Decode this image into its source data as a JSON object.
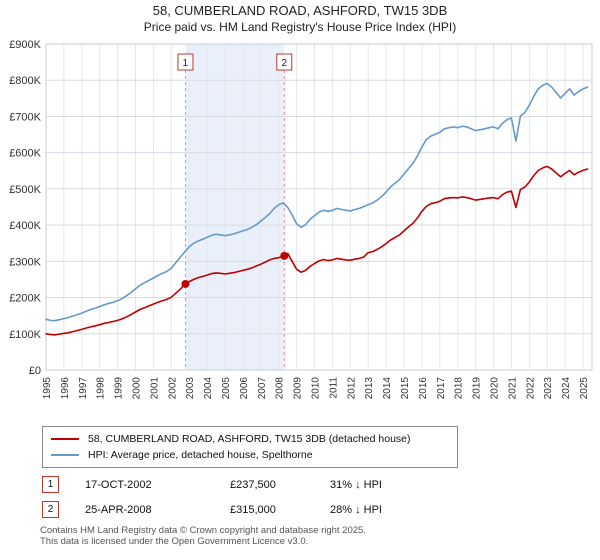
{
  "title": "58, CUMBERLAND ROAD, ASHFORD, TW15 3DB",
  "subtitle": "Price paid vs. HM Land Registry's House Price Index (HPI)",
  "legend": [
    {
      "label": "58, CUMBERLAND ROAD, ASHFORD, TW15 3DB (detached house)",
      "color": "#c00000"
    },
    {
      "label": "HPI: Average price, detached house, Spelthorne",
      "color": "#6699cc"
    }
  ],
  "transactions": [
    {
      "num": "1",
      "date": "17-OCT-2002",
      "price": "£237,500",
      "hpi_diff": "31% ↓ HPI",
      "x": 2002.79,
      "value_k": 237.5
    },
    {
      "num": "2",
      "date": "25-APR-2008",
      "price": "£315,000",
      "hpi_diff": "28% ↓ HPI",
      "x": 2008.31,
      "value_k": 315
    }
  ],
  "footer": {
    "line1": "Contains HM Land Registry data © Crown copyright and database right 2025.",
    "line2": "This data is licensed under the Open Government Licence v3.0."
  },
  "chart_data": {
    "type": "line",
    "title": "58, CUMBERLAND ROAD, ASHFORD, TW15 3DB — Price paid vs. HPI",
    "unit": "GBP thousands",
    "x_range": [
      1995,
      2025.5
    ],
    "y_range": [
      0,
      900
    ],
    "grid": true,
    "legend_position": "bottom",
    "shaded_region": [
      2002.79,
      2008.31
    ],
    "shade_color": "#eaf0fa",
    "x_ticks": [
      1995,
      1996,
      1997,
      1998,
      1999,
      2000,
      2001,
      2002,
      2003,
      2004,
      2005,
      2006,
      2007,
      2008,
      2009,
      2010,
      2011,
      2012,
      2013,
      2014,
      2015,
      2016,
      2017,
      2018,
      2019,
      2020,
      2021,
      2022,
      2023,
      2024,
      2025
    ],
    "y_ticks": [
      {
        "value": 0,
        "label": "£0"
      },
      {
        "value": 100,
        "label": "£100K"
      },
      {
        "value": 200,
        "label": "£200K"
      },
      {
        "value": 300,
        "label": "£300K"
      },
      {
        "value": 400,
        "label": "£400K"
      },
      {
        "value": 500,
        "label": "£500K"
      },
      {
        "value": 600,
        "label": "£600K"
      },
      {
        "value": 700,
        "label": "£700K"
      },
      {
        "value": 800,
        "label": "£800K"
      },
      {
        "value": 900,
        "label": "£900K"
      }
    ],
    "series": [
      {
        "name": "58, CUMBERLAND ROAD, ASHFORD, TW15 3DB (detached house)",
        "color": "#c00000",
        "x_start": 1995,
        "x_step": 0.25,
        "values": [
          100,
          98,
          97,
          99,
          101,
          103,
          106,
          109,
          112,
          116,
          119,
          122,
          125,
          129,
          131,
          134,
          137,
          141,
          147,
          153,
          160,
          167,
          172,
          177,
          182,
          187,
          191,
          195,
          201,
          212,
          223,
          236,
          244,
          250,
          255,
          258,
          262,
          266,
          268,
          267,
          265,
          267,
          269,
          272,
          275,
          278,
          282,
          287,
          292,
          298,
          304,
          308,
          310,
          315,
          322,
          300,
          278,
          270,
          275,
          286,
          294,
          301,
          305,
          302,
          304,
          308,
          306,
          304,
          303,
          306,
          308,
          312,
          324,
          327,
          333,
          340,
          349,
          359,
          366,
          373,
          384,
          395,
          405,
          420,
          438,
          452,
          459,
          462,
          466,
          473,
          475,
          476,
          475,
          478,
          476,
          473,
          469,
          471,
          473,
          475,
          476,
          473,
          484,
          491,
          494,
          449,
          498,
          505,
          519,
          537,
          551,
          558,
          562,
          555,
          544,
          533,
          543,
          551,
          539,
          546,
          551,
          555
        ]
      },
      {
        "name": "HPI: Average price, detached house, Spelthorne",
        "color": "#6699cc",
        "x_start": 1995,
        "x_step": 0.25,
        "values": [
          140,
          137,
          136,
          139,
          142,
          145,
          149,
          153,
          157,
          162,
          167,
          171,
          175,
          180,
          184,
          187,
          191,
          197,
          205,
          214,
          224,
          234,
          241,
          247,
          254,
          261,
          267,
          272,
          281,
          296,
          311,
          326,
          340,
          350,
          356,
          361,
          366,
          372,
          375,
          373,
          371,
          373,
          376,
          380,
          384,
          388,
          394,
          401,
          411,
          421,
          432,
          446,
          456,
          461,
          449,
          428,
          404,
          394,
          401,
          416,
          426,
          436,
          441,
          438,
          441,
          446,
          443,
          441,
          439,
          443,
          446,
          451,
          456,
          461,
          469,
          479,
          491,
          506,
          516,
          526,
          541,
          556,
          571,
          591,
          616,
          636,
          646,
          651,
          656,
          666,
          669,
          671,
          669,
          673,
          671,
          666,
          661,
          663,
          666,
          669,
          671,
          666,
          681,
          691,
          696,
          632,
          701,
          711,
          731,
          756,
          776,
          786,
          791,
          781,
          766,
          751,
          764,
          776,
          759,
          769,
          776,
          781
        ]
      }
    ]
  }
}
